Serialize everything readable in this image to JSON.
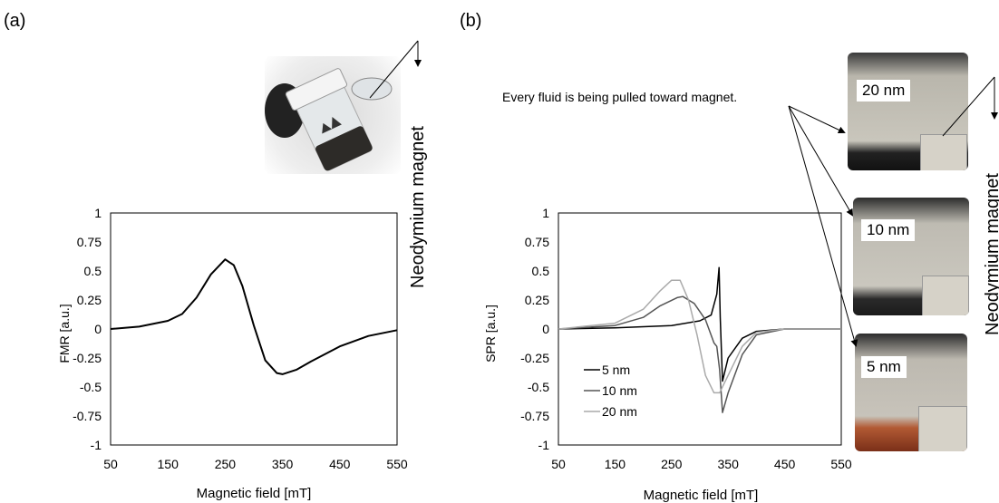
{
  "panels": {
    "a": {
      "label": "(a)",
      "magnet_label": "Neodymium magnet"
    },
    "b": {
      "label": "(b)",
      "magnet_label": "Neodymium magnet",
      "annotation": "Every fluid is being pulled toward magnet.",
      "photo_labels": [
        "20 nm",
        "10 nm",
        "5 nm"
      ]
    }
  },
  "colors": {
    "5 nm": "#000000",
    "10 nm": "#555555",
    "20 nm": "#aaaaaa"
  },
  "chart_data": [
    {
      "type": "line",
      "xlabel": "Magnetic field [mT]",
      "ylabel": "FMR [a.u.]",
      "xlim": [
        50,
        550
      ],
      "ylim": [
        -1,
        1
      ],
      "xticks": [
        "50",
        "150",
        "250",
        "350",
        "450",
        "550"
      ],
      "yticks": [
        "1",
        "0.75",
        "0.5",
        "0.25",
        "0",
        "-0.25",
        "-0.5",
        "-0.75",
        "-1"
      ],
      "grid": false,
      "series": [
        {
          "x": [
            50,
            100,
            150,
            175,
            200,
            225,
            250,
            265,
            280,
            300,
            320,
            340,
            350,
            375,
            400,
            450,
            500,
            550
          ],
          "y": [
            0,
            0.02,
            0.07,
            0.13,
            0.27,
            0.47,
            0.6,
            0.55,
            0.37,
            0.03,
            -0.27,
            -0.38,
            -0.39,
            -0.35,
            -0.28,
            -0.15,
            -0.06,
            -0.01
          ]
        }
      ]
    },
    {
      "type": "line",
      "xlabel": "Magnetic field [mT]",
      "ylabel": "SPR [a.u.]",
      "xlim": [
        50,
        550
      ],
      "ylim": [
        -1,
        1
      ],
      "xticks": [
        "50",
        "150",
        "250",
        "350",
        "450",
        "550"
      ],
      "yticks": [
        "1",
        "0.75",
        "0.5",
        "0.25",
        "0",
        "-0.25",
        "-0.5",
        "-0.75",
        "-1"
      ],
      "grid": false,
      "legend": "lower-left",
      "series": [
        {
          "name": "5 nm",
          "x": [
            50,
            150,
            250,
            300,
            320,
            330,
            334,
            336,
            340,
            350,
            375,
            400,
            450,
            550
          ],
          "y": [
            0,
            0.01,
            0.03,
            0.07,
            0.12,
            0.3,
            0.53,
            0.1,
            -0.45,
            -0.25,
            -0.08,
            -0.02,
            0,
            0
          ]
        },
        {
          "name": "10 nm",
          "x": [
            50,
            150,
            200,
            230,
            260,
            270,
            290,
            310,
            325,
            330,
            335,
            340,
            350,
            375,
            400,
            450,
            550
          ],
          "y": [
            0,
            0.03,
            0.1,
            0.2,
            0.27,
            0.28,
            0.22,
            0.08,
            -0.12,
            -0.15,
            -0.35,
            -0.72,
            -0.55,
            -0.22,
            -0.05,
            0,
            0
          ]
        },
        {
          "name": "20 nm",
          "x": [
            50,
            150,
            200,
            230,
            250,
            265,
            280,
            295,
            310,
            325,
            335,
            350,
            375,
            400,
            450,
            550
          ],
          "y": [
            0,
            0.05,
            0.17,
            0.33,
            0.42,
            0.42,
            0.25,
            -0.05,
            -0.4,
            -0.55,
            -0.55,
            -0.4,
            -0.15,
            -0.03,
            0,
            0
          ]
        }
      ]
    }
  ]
}
